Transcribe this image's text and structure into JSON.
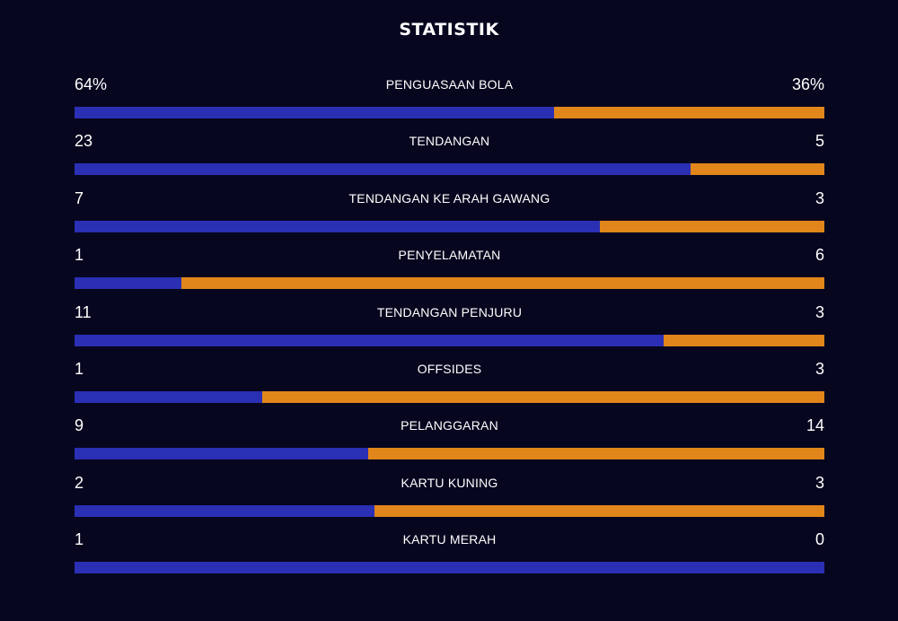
{
  "title": "STATISTIK",
  "colors": {
    "background": "#07061f",
    "home_bar": "#2a2fb4",
    "away_bar": "#e0861a"
  },
  "stats": [
    {
      "label": "PENGUASAAN BOLA",
      "home_display": "64%",
      "away_display": "36%",
      "home": 64,
      "away": 36
    },
    {
      "label": "TENDANGAN",
      "home_display": "23",
      "away_display": "5",
      "home": 23,
      "away": 5
    },
    {
      "label": "TENDANGAN KE ARAH GAWANG",
      "home_display": "7",
      "away_display": "3",
      "home": 7,
      "away": 3
    },
    {
      "label": "PENYELAMATAN",
      "home_display": "1",
      "away_display": "6",
      "home": 1,
      "away": 6
    },
    {
      "label": "TENDANGAN PENJURU",
      "home_display": "11",
      "away_display": "3",
      "home": 11,
      "away": 3
    },
    {
      "label": "OFFSIDES",
      "home_display": "1",
      "away_display": "3",
      "home": 1,
      "away": 3
    },
    {
      "label": "PELANGGARAN",
      "home_display": "9",
      "away_display": "14",
      "home": 9,
      "away": 14
    },
    {
      "label": "KARTU KUNING",
      "home_display": "2",
      "away_display": "3",
      "home": 2,
      "away": 3
    },
    {
      "label": "KARTU MERAH",
      "home_display": "1",
      "away_display": "0",
      "home": 1,
      "away": 0
    }
  ]
}
